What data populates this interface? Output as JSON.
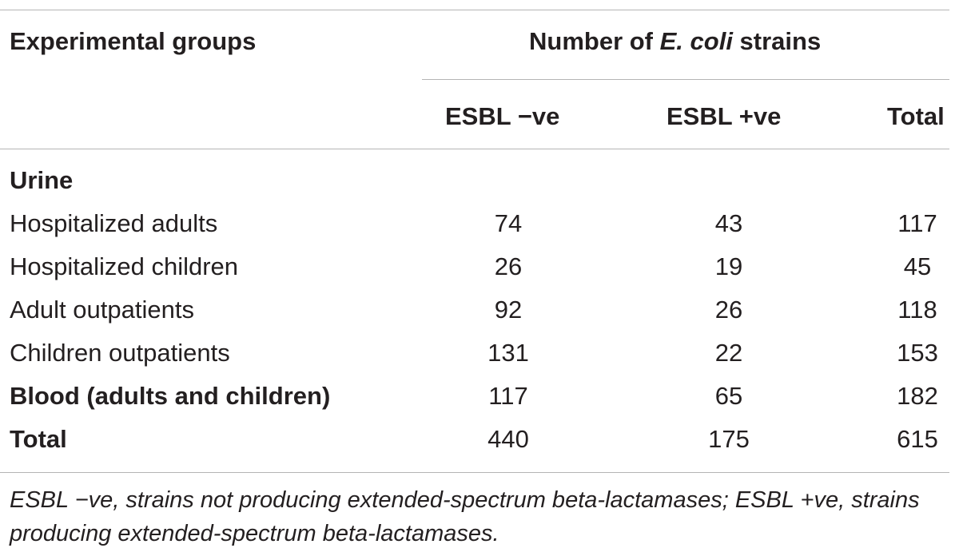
{
  "table": {
    "header": {
      "group_label": "Experimental groups",
      "span_label_pre": "Number of ",
      "span_label_em": "E. coli",
      "span_label_post": " strains",
      "columns": [
        "ESBL −ve",
        "ESBL +ve",
        "Total"
      ]
    },
    "section_urine": "Urine",
    "rows": [
      {
        "label": "Hospitalized adults",
        "esbl_neg": "74",
        "esbl_pos": "43",
        "total": "117"
      },
      {
        "label": "Hospitalized children",
        "esbl_neg": "26",
        "esbl_pos": "19",
        "total": "45"
      },
      {
        "label": "Adult outpatients",
        "esbl_neg": "92",
        "esbl_pos": "26",
        "total": "118"
      },
      {
        "label": "Children outpatients",
        "esbl_neg": "131",
        "esbl_pos": "22",
        "total": "153"
      }
    ],
    "blood_row": {
      "label": "Blood (adults and children)",
      "esbl_neg": "117",
      "esbl_pos": "65",
      "total": "182"
    },
    "total_row": {
      "label": "Total",
      "esbl_neg": "440",
      "esbl_pos": "175",
      "total": "615"
    }
  },
  "footnote": "ESBL −ve, strains not producing extended-spectrum beta-lactamases; ESBL +ve, strains producing extended-spectrum beta-lactamases."
}
